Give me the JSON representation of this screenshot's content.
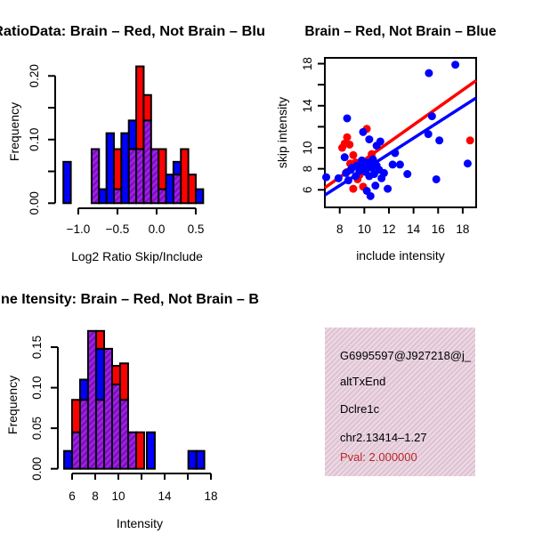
{
  "colors": {
    "red": "#FF0000",
    "blue": "#0000FF",
    "purple": "#A21FE8",
    "purple_hatch": "#7C0EBE",
    "axis": "#000000",
    "pval_text": "#B82828",
    "info_box_pink": "#F3D4EF",
    "info_box_weave": "#C7BFAD"
  },
  "chart_data": [
    {
      "id": "ratio-hist",
      "type": "bar",
      "title": "RatioData: Brain – Red, Not Brain – Blu",
      "xlabel": "Log2 Ratio Skip/Include",
      "ylabel": "Frequency",
      "xlim": [
        -1.295,
        0.67
      ],
      "ylim": [
        0,
        0.2236
      ],
      "x_tick_values": [
        -1.0,
        -0.5,
        0.0,
        0.5
      ],
      "x_tick_labels": [
        "−1.0",
        "−0.5",
        "0.0",
        "0.5"
      ],
      "y_tick_values": [
        0,
        0.05,
        0.1,
        0.15,
        0.2
      ],
      "y_tick_labels": [
        "0.00",
        "",
        "0.10",
        "",
        "0.20"
      ],
      "bars": [
        {
          "x": -1.19,
          "w": 0.095,
          "segments": [
            {
              "color": "blue",
              "y0": 0,
              "y1": 0.065
            }
          ]
        },
        {
          "x": -0.83,
          "w": 0.095,
          "segments": [
            {
              "color": "purple",
              "y0": 0,
              "y1": 0.085
            }
          ]
        },
        {
          "x": -0.735,
          "w": 0.095,
          "segments": [
            {
              "color": "blue",
              "y0": 0,
              "y1": 0.022
            }
          ]
        },
        {
          "x": -0.64,
          "w": 0.095,
          "segments": [
            {
              "color": "blue",
              "y0": 0,
              "y1": 0.11
            }
          ]
        },
        {
          "x": -0.545,
          "w": 0.095,
          "segments": [
            {
              "color": "purple",
              "y0": 0,
              "y1": 0.022
            },
            {
              "color": "red",
              "y0": 0.022,
              "y1": 0.085
            }
          ]
        },
        {
          "x": -0.45,
          "w": 0.095,
          "segments": [
            {
              "color": "blue",
              "y0": 0,
              "y1": 0.11
            }
          ]
        },
        {
          "x": -0.355,
          "w": 0.095,
          "segments": [
            {
              "color": "purple",
              "y0": 0,
              "y1": 0.085
            },
            {
              "color": "blue",
              "y0": 0.085,
              "y1": 0.13
            }
          ]
        },
        {
          "x": -0.26,
          "w": 0.095,
          "segments": [
            {
              "color": "purple",
              "y0": 0,
              "y1": 0.085
            },
            {
              "color": "red",
              "y0": 0.085,
              "y1": 0.215
            }
          ]
        },
        {
          "x": -0.165,
          "w": 0.095,
          "segments": [
            {
              "color": "purple",
              "y0": 0,
              "y1": 0.13
            },
            {
              "color": "red",
              "y0": 0.13,
              "y1": 0.17
            }
          ]
        },
        {
          "x": -0.07,
          "w": 0.095,
          "segments": [
            {
              "color": "purple",
              "y0": 0,
              "y1": 0.085
            }
          ]
        },
        {
          "x": 0.025,
          "w": 0.095,
          "segments": [
            {
              "color": "purple",
              "y0": 0,
              "y1": 0.022
            },
            {
              "color": "red",
              "y0": 0.022,
              "y1": 0.085
            }
          ]
        },
        {
          "x": 0.12,
          "w": 0.095,
          "segments": [
            {
              "color": "blue",
              "y0": 0,
              "y1": 0.045
            }
          ]
        },
        {
          "x": 0.215,
          "w": 0.095,
          "segments": [
            {
              "color": "purple",
              "y0": 0,
              "y1": 0.045
            },
            {
              "color": "blue",
              "y0": 0.045,
              "y1": 0.065
            }
          ]
        },
        {
          "x": 0.31,
          "w": 0.095,
          "segments": [
            {
              "color": "red",
              "y0": 0,
              "y1": 0.085
            }
          ]
        },
        {
          "x": 0.405,
          "w": 0.095,
          "segments": [
            {
              "color": "red",
              "y0": 0,
              "y1": 0.045
            }
          ]
        },
        {
          "x": 0.5,
          "w": 0.095,
          "segments": [
            {
              "color": "blue",
              "y0": 0,
              "y1": 0.022
            }
          ]
        }
      ]
    },
    {
      "id": "scatter",
      "type": "scatter",
      "title": "Brain – Red, Not Brain – Blue",
      "xlabel": "include intensity",
      "ylabel": "skip intensity",
      "xlim": [
        6.79,
        19.1
      ],
      "ylim": [
        4.33,
        18.56
      ],
      "x_tick_values": [
        8,
        10,
        12,
        14,
        16,
        18
      ],
      "x_tick_labels": [
        "8",
        "10",
        "12",
        "14",
        "16",
        "18"
      ],
      "y_tick_values": [
        6,
        8,
        10,
        12,
        14,
        16,
        18
      ],
      "y_tick_labels": [
        "6",
        "8",
        "10",
        "",
        "14",
        "",
        "18"
      ],
      "series": [
        {
          "name": "red",
          "color": "red",
          "points": [
            [
              8.2,
              10.0
            ],
            [
              8.4,
              10.4
            ],
            [
              8.6,
              11.0
            ],
            [
              8.8,
              10.3
            ],
            [
              10.2,
              11.8
            ],
            [
              18.6,
              10.7
            ],
            [
              9.1,
              9.3
            ],
            [
              9.3,
              8.6
            ],
            [
              10.6,
              9.4
            ],
            [
              8.85,
              8.5
            ],
            [
              8.6,
              7.7
            ],
            [
              9.45,
              7.0
            ],
            [
              9.1,
              6.1
            ],
            [
              9.9,
              6.3
            ],
            [
              9.6,
              7.4
            ]
          ]
        },
        {
          "name": "blue",
          "color": "blue",
          "points": [
            [
              6.9,
              7.2
            ],
            [
              7.9,
              7.1
            ],
            [
              8.4,
              9.1
            ],
            [
              8.5,
              7.6
            ],
            [
              8.7,
              6.9
            ],
            [
              9.0,
              8.1
            ],
            [
              9.4,
              8.3
            ],
            [
              9.6,
              7.8
            ],
            [
              9.8,
              8.8
            ],
            [
              10.0,
              8.3
            ],
            [
              10.1,
              7.7
            ],
            [
              10.3,
              8.6
            ],
            [
              10.4,
              7.3
            ],
            [
              10.6,
              8.1
            ],
            [
              10.7,
              8.9
            ],
            [
              10.8,
              7.5
            ],
            [
              11.0,
              8.3
            ],
            [
              11.2,
              7.9
            ],
            [
              11.4,
              7.1
            ],
            [
              11.6,
              7.6
            ],
            [
              10.9,
              6.4
            ],
            [
              10.2,
              5.9
            ],
            [
              10.5,
              5.4
            ],
            [
              11.9,
              6.1
            ],
            [
              9.3,
              7.3
            ],
            [
              8.9,
              7.9
            ],
            [
              9.9,
              11.5
            ],
            [
              10.4,
              10.8
            ],
            [
              11.0,
              10.2
            ],
            [
              11.3,
              10.6
            ],
            [
              12.5,
              9.5
            ],
            [
              8.6,
              12.8
            ],
            [
              12.3,
              8.4
            ],
            [
              12.9,
              8.4
            ],
            [
              13.5,
              7.5
            ],
            [
              15.85,
              7.0
            ],
            [
              16.1,
              10.7
            ],
            [
              15.2,
              11.3
            ],
            [
              15.5,
              13.0
            ],
            [
              15.25,
              17.1
            ],
            [
              17.4,
              17.9
            ],
            [
              18.4,
              8.5
            ]
          ]
        }
      ],
      "fit_lines": [
        {
          "color": "red",
          "x1": 6.79,
          "y1": 6.2,
          "x2": 19.1,
          "y2": 16.4
        },
        {
          "color": "blue",
          "x1": 6.79,
          "y1": 5.5,
          "x2": 19.1,
          "y2": 14.75
        }
      ]
    },
    {
      "id": "intensity-hist",
      "type": "bar",
      "title": "ne Itensity: Brain – Red, Not Brain – B",
      "xlabel": "Intensity",
      "ylabel": "Frequency",
      "xlim": [
        4.77,
        18.3
      ],
      "ylim": [
        0,
        0.177
      ],
      "x_tick_values": [
        6,
        8,
        10,
        12,
        14,
        16,
        18
      ],
      "x_tick_labels": [
        "6",
        "8",
        "10",
        "",
        "14",
        "",
        "18"
      ],
      "y_tick_values": [
        0,
        0.05,
        0.1,
        0.15
      ],
      "y_tick_labels": [
        "0.00",
        "0.05",
        "0.10",
        "0.15"
      ],
      "bars": [
        {
          "x": 5.31,
          "w": 0.69,
          "segments": [
            {
              "color": "blue",
              "y0": 0,
              "y1": 0.022
            }
          ]
        },
        {
          "x": 6.0,
          "w": 0.69,
          "segments": [
            {
              "color": "purple",
              "y0": 0,
              "y1": 0.045
            },
            {
              "color": "red",
              "y0": 0.045,
              "y1": 0.085
            }
          ]
        },
        {
          "x": 6.69,
          "w": 0.69,
          "segments": [
            {
              "color": "purple",
              "y0": 0,
              "y1": 0.085
            },
            {
              "color": "blue",
              "y0": 0.085,
              "y1": 0.11
            }
          ]
        },
        {
          "x": 7.38,
          "w": 0.69,
          "segments": [
            {
              "color": "purple",
              "y0": 0,
              "y1": 0.17
            }
          ]
        },
        {
          "x": 8.08,
          "w": 0.69,
          "segments": [
            {
              "color": "purple",
              "y0": 0,
              "y1": 0.085
            },
            {
              "color": "blue",
              "y0": 0.085,
              "y1": 0.148
            },
            {
              "color": "red",
              "y0": 0.148,
              "y1": 0.17
            }
          ]
        },
        {
          "x": 8.77,
          "w": 0.69,
          "segments": [
            {
              "color": "purple",
              "y0": 0,
              "y1": 0.148
            }
          ]
        },
        {
          "x": 9.46,
          "w": 0.69,
          "segments": [
            {
              "color": "purple",
              "y0": 0,
              "y1": 0.104
            },
            {
              "color": "red",
              "y0": 0.104,
              "y1": 0.127
            }
          ]
        },
        {
          "x": 10.15,
          "w": 0.69,
          "segments": [
            {
              "color": "purple",
              "y0": 0,
              "y1": 0.085
            },
            {
              "color": "red",
              "y0": 0.085,
              "y1": 0.13
            }
          ]
        },
        {
          "x": 10.85,
          "w": 0.69,
          "segments": [
            {
              "color": "purple",
              "y0": 0,
              "y1": 0.045
            }
          ]
        },
        {
          "x": 11.54,
          "w": 0.69,
          "segments": [
            {
              "color": "red",
              "y0": 0,
              "y1": 0.045
            }
          ]
        },
        {
          "x": 12.46,
          "w": 0.69,
          "segments": [
            {
              "color": "blue",
              "y0": 0,
              "y1": 0.045
            }
          ]
        },
        {
          "x": 16.05,
          "w": 0.69,
          "segments": [
            {
              "color": "blue",
              "y0": 0,
              "y1": 0.022
            }
          ]
        },
        {
          "x": 16.74,
          "w": 0.69,
          "segments": [
            {
              "color": "blue",
              "y0": 0,
              "y1": 0.022
            }
          ]
        }
      ]
    }
  ],
  "info_box": {
    "lines": [
      "G6995597@J927218@j_",
      "altTxEnd",
      "Dclre1c",
      "chr2.13414–1.27"
    ],
    "pval": "Pval: 2.000000"
  }
}
